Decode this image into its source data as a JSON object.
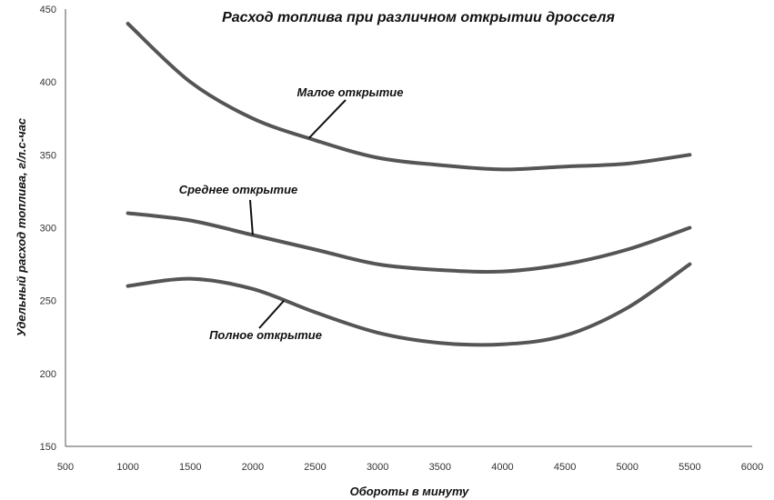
{
  "chart_data": {
    "type": "line",
    "title": "Расход топлива при различном открытии дросселя",
    "xlabel": "Обороты в минуту",
    "ylabel": "Удельный расход топлива, г/л.с-час",
    "xlim": [
      500,
      6000
    ],
    "ylim": [
      150,
      450
    ],
    "xticks": [
      500,
      1000,
      1500,
      2000,
      2500,
      3000,
      3500,
      4000,
      4500,
      5000,
      5500,
      6000
    ],
    "yticks": [
      150,
      200,
      250,
      300,
      350,
      400,
      450
    ],
    "grid": false,
    "legend": "none",
    "series": [
      {
        "name": "Малое открытие",
        "x": [
          1000,
          1500,
          2000,
          2500,
          3000,
          3500,
          4000,
          4500,
          5000,
          5500
        ],
        "values": [
          440,
          400,
          375,
          360,
          348,
          343,
          340,
          342,
          344,
          350
        ]
      },
      {
        "name": "Среднее открытие",
        "x": [
          1000,
          1500,
          2000,
          2500,
          3000,
          3500,
          4000,
          4500,
          5000,
          5500
        ],
        "values": [
          310,
          305,
          295,
          285,
          275,
          271,
          270,
          275,
          285,
          300
        ]
      },
      {
        "name": "Полное открытие",
        "x": [
          1000,
          1500,
          2000,
          2500,
          3000,
          3500,
          4000,
          4500,
          5000,
          5500
        ],
        "values": [
          260,
          265,
          258,
          242,
          228,
          221,
          220,
          226,
          245,
          275
        ]
      }
    ],
    "annotations": [
      {
        "text": "Малое открытие",
        "series": 0,
        "x": 2450
      },
      {
        "text": "Среднее открытие",
        "series": 1,
        "x": 2000
      },
      {
        "text": "Полное открытие",
        "series": 2,
        "x": 2250
      }
    ]
  }
}
